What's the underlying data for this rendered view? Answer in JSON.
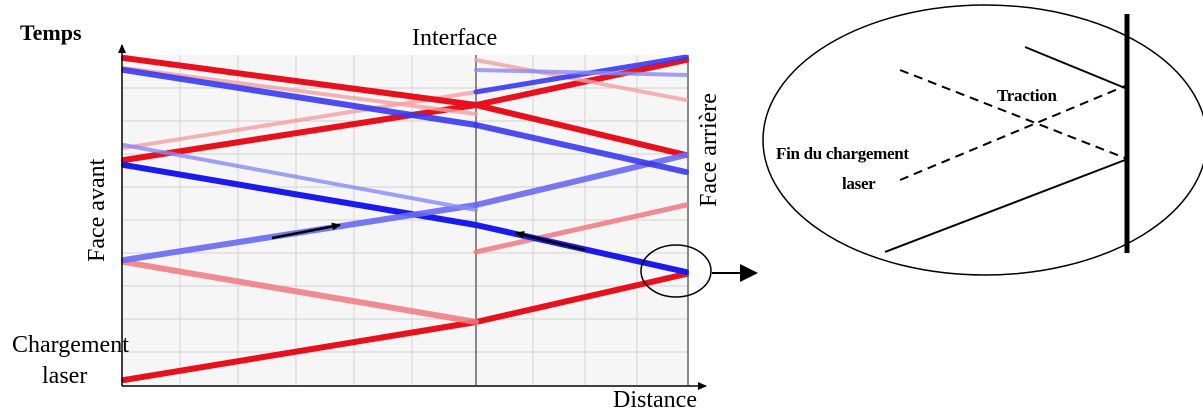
{
  "labels": {
    "time_axis": "Temps",
    "distance_axis": "Distance",
    "interface": "Interface",
    "front_face": "Face avant",
    "rear_face": "Face arrière",
    "laser_loading_line1": "Chargement",
    "laser_loading_line2": "laser"
  },
  "zoom": {
    "traction": "Traction",
    "end_of_loading_line1": "Fin du chargement",
    "end_of_loading_line2": "laser"
  },
  "colors": {
    "compression": "#e8101c",
    "tension": "#1a1aee",
    "grid": "#d0d0d0",
    "axis": "#000000"
  },
  "icons": [
    "arrow-right-icon",
    "zoom-circle-icon"
  ]
}
